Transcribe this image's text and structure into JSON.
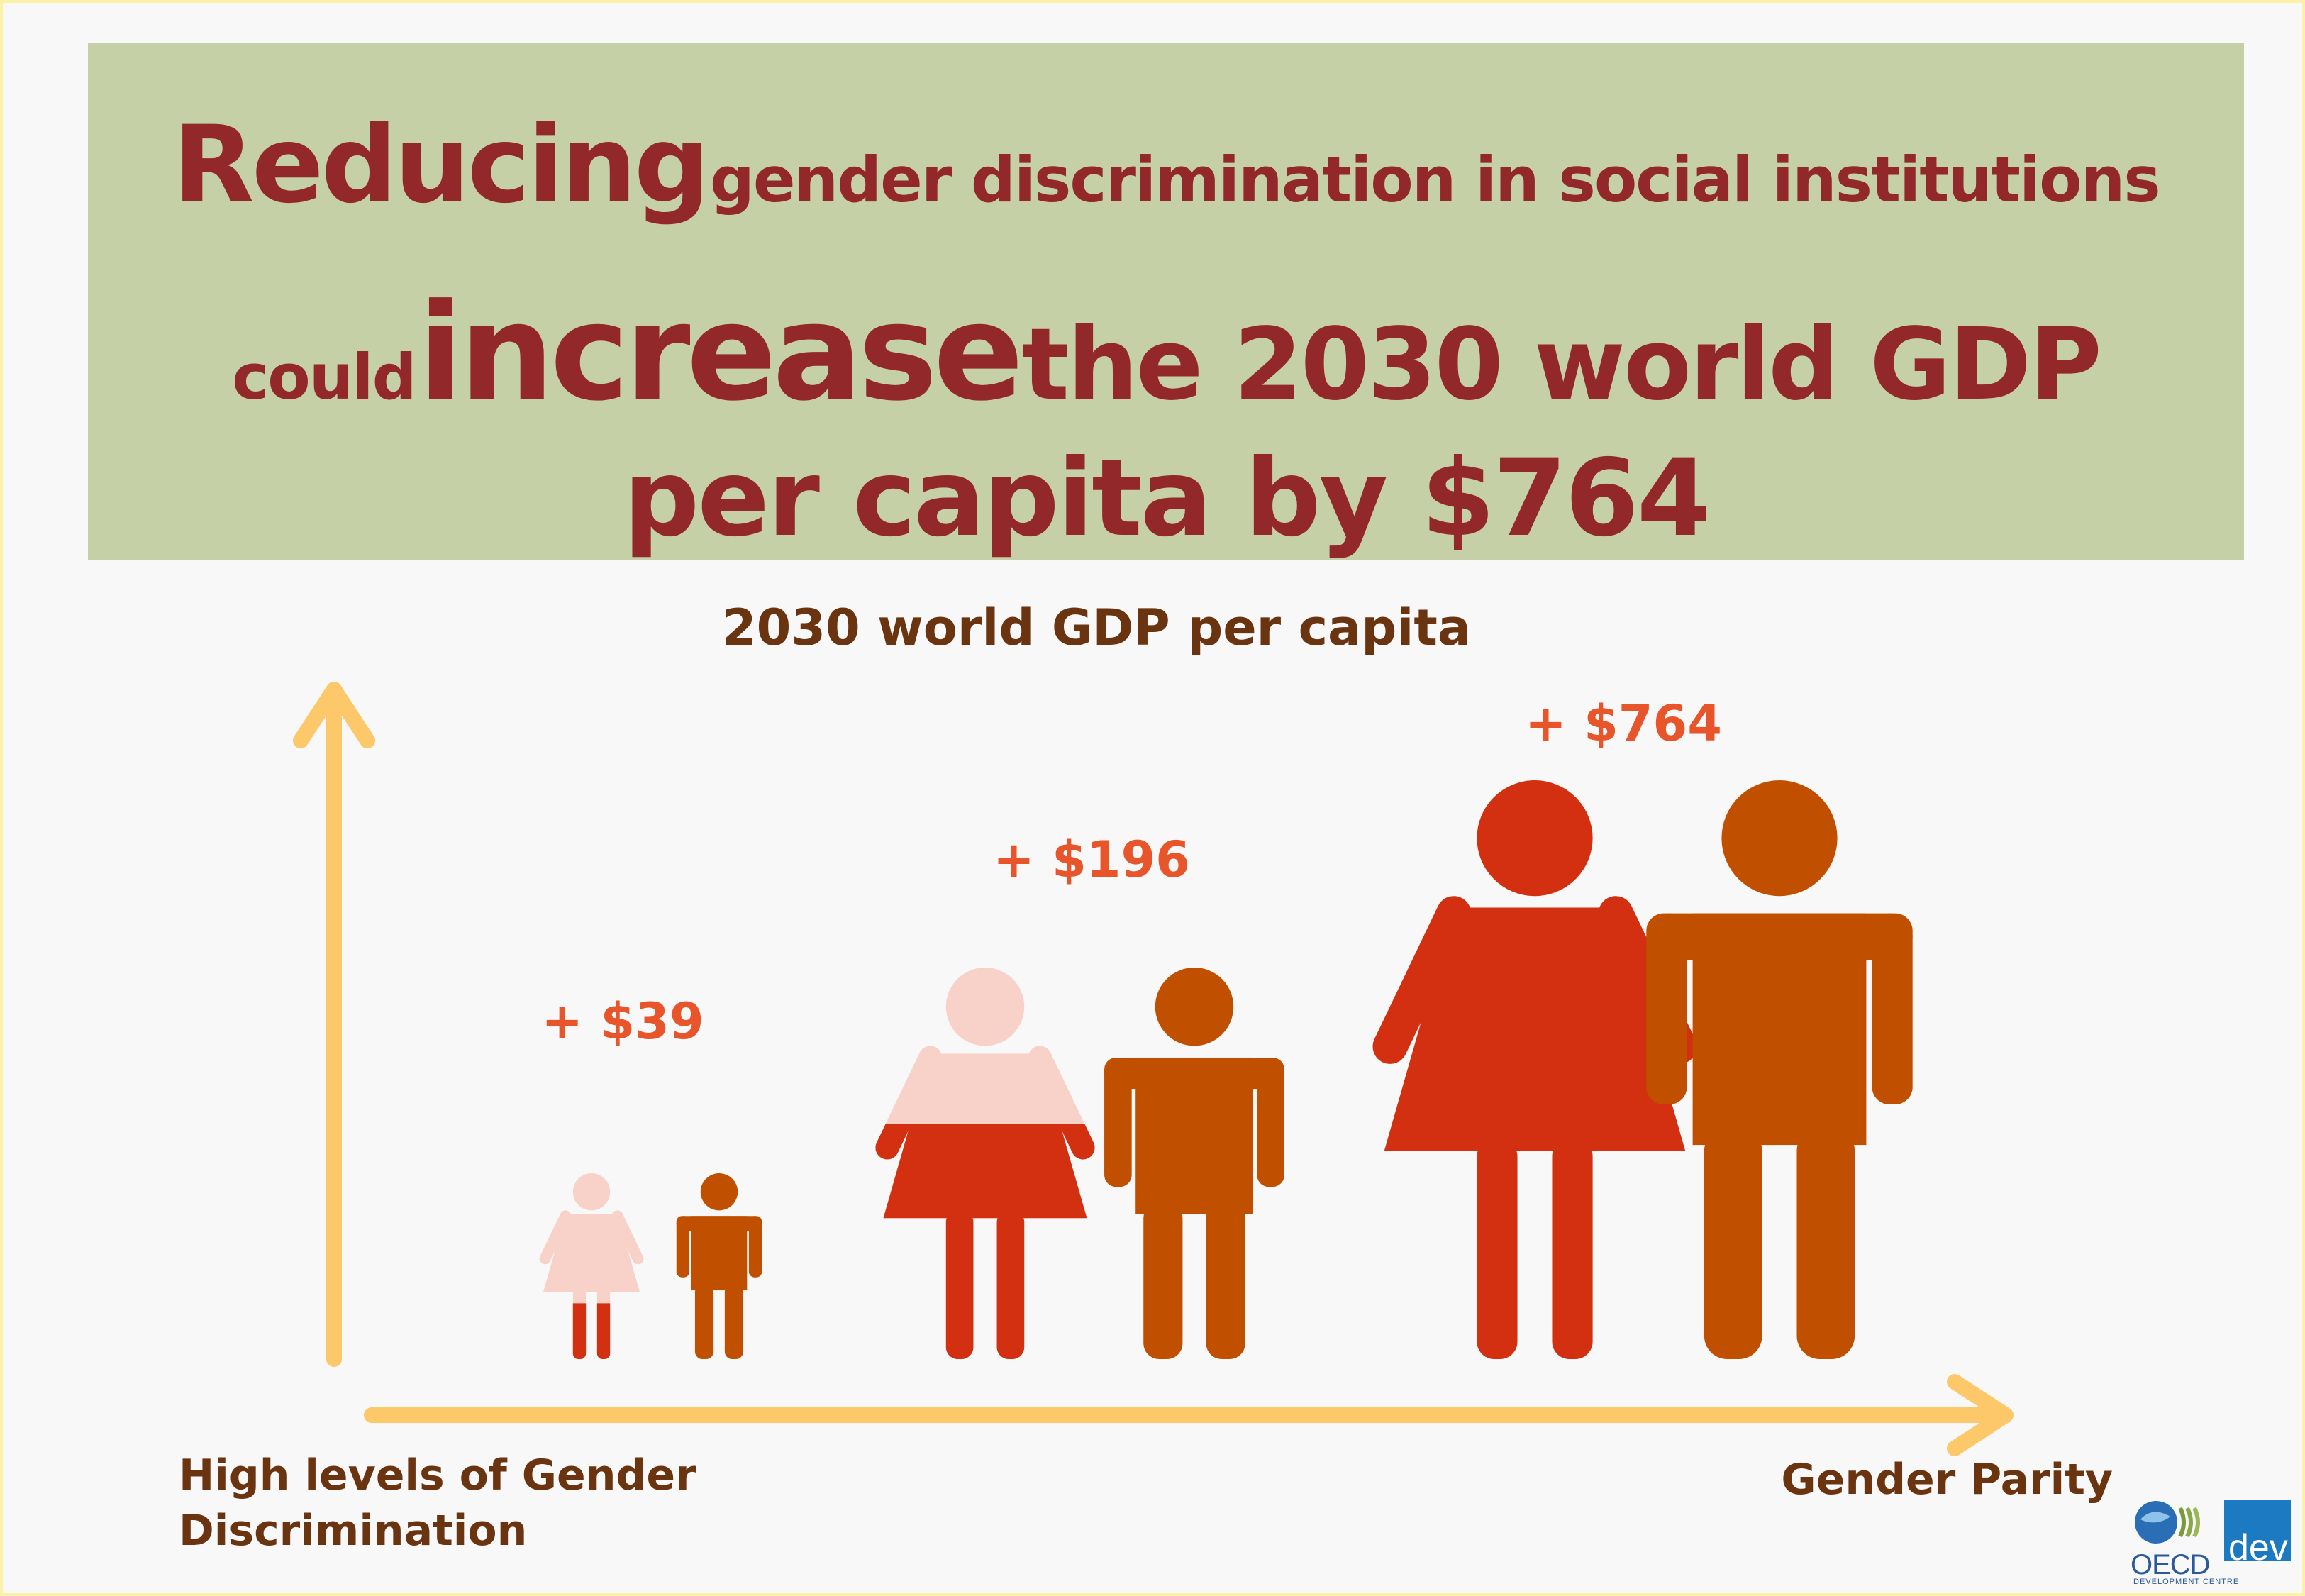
{
  "headline": {
    "line1_big": "Reducing",
    "line1_rest": "gender discrimination in social institutions",
    "line2_small": "could",
    "line2_big": "increase",
    "line2_rest": "the 2030 world GDP",
    "line3": "per capita by $764"
  },
  "chart_data": {
    "type": "bar",
    "title": "2030 world GDP per capita",
    "xlabel_left": "High levels of Gender Discrimination",
    "xlabel_left_line1": "High levels of Gender",
    "xlabel_left_line2": "Discrimination",
    "xlabel_right": "Gender Parity",
    "categories": [
      "",
      "",
      ""
    ],
    "values": [
      39,
      196,
      764
    ],
    "value_labels": [
      "+ $39",
      "+ $196",
      "+ $764"
    ],
    "female_fill_fraction": [
      0.3,
      0.6,
      1.0
    ],
    "colors": {
      "female": "#d23010",
      "female_light": "#f8d2c8",
      "male": "#c05000",
      "value_label": "#e8552a",
      "axis": "#fcc86a",
      "axis_label": "#6a3410"
    }
  },
  "branding": {
    "logo": "OECD",
    "logo_suffix": "dev",
    "subtitle": "DEVELOPMENT CENTRE"
  }
}
